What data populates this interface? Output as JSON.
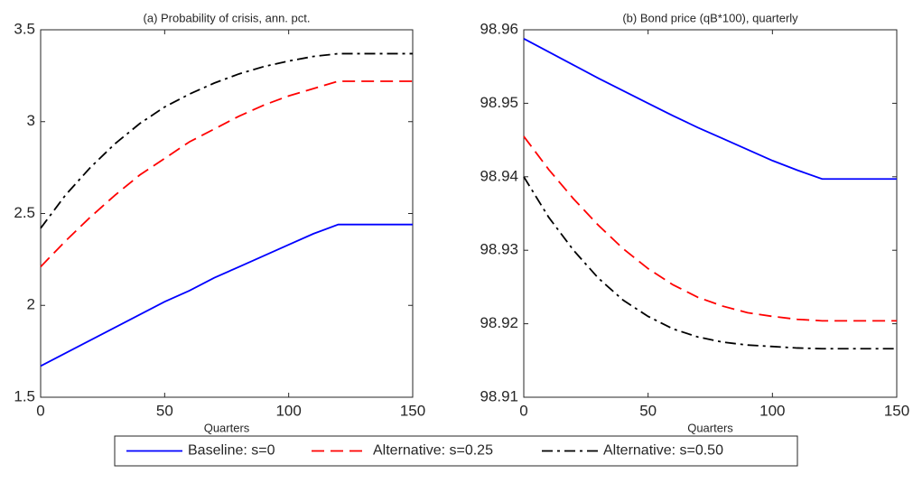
{
  "chart_data": [
    {
      "type": "line",
      "title": "(a) Probability of crisis, ann. pct.",
      "x_label": "Quarters",
      "x": [
        0,
        10,
        20,
        30,
        40,
        50,
        60,
        70,
        80,
        90,
        100,
        110,
        120,
        130,
        140,
        150
      ],
      "xlim": [
        0,
        150
      ],
      "xticks": [
        0,
        50,
        100,
        150
      ],
      "ylim": [
        1.5,
        3.5
      ],
      "yticks": [
        1.5,
        2,
        2.5,
        3,
        3.5
      ],
      "series": [
        {
          "name": "Baseline: s=0",
          "color": "#0000ff",
          "dash": "solid",
          "values": [
            1.67,
            1.74,
            1.81,
            1.88,
            1.95,
            2.02,
            2.08,
            2.15,
            2.21,
            2.27,
            2.33,
            2.39,
            2.44,
            2.44,
            2.44,
            2.44
          ]
        },
        {
          "name": "Alternative: s=0.25",
          "color": "#ff0000",
          "dash": "dashed",
          "values": [
            2.21,
            2.35,
            2.48,
            2.6,
            2.71,
            2.8,
            2.89,
            2.96,
            3.03,
            3.09,
            3.14,
            3.18,
            3.22,
            3.22,
            3.22,
            3.22
          ]
        },
        {
          "name": "Alternative: s=0.50",
          "color": "#000000",
          "dash": "dashdot",
          "values": [
            2.42,
            2.6,
            2.75,
            2.88,
            2.99,
            3.08,
            3.15,
            3.21,
            3.26,
            3.3,
            3.33,
            3.355,
            3.37,
            3.37,
            3.37,
            3.37
          ]
        }
      ]
    },
    {
      "type": "line",
      "title": "(b) Bond price (qB*100), quarterly",
      "x_label": "Quarters",
      "x": [
        0,
        10,
        20,
        30,
        40,
        50,
        60,
        70,
        80,
        90,
        100,
        110,
        120,
        130,
        140,
        150
      ],
      "xlim": [
        0,
        150
      ],
      "xticks": [
        0,
        50,
        100,
        150
      ],
      "ylim": [
        98.91,
        98.96
      ],
      "yticks": [
        98.91,
        98.92,
        98.93,
        98.94,
        98.95,
        98.96
      ],
      "series": [
        {
          "color": "#0000ff",
          "dash": "solid",
          "values": [
            98.9588,
            98.957,
            98.9552,
            98.9534,
            98.9517,
            98.95,
            98.9483,
            98.9467,
            98.9452,
            98.9437,
            98.9422,
            98.9409,
            98.9397,
            98.9397,
            98.9397,
            98.9397
          ]
        },
        {
          "color": "#ff0000",
          "dash": "dashed",
          "values": [
            98.9455,
            98.941,
            98.937,
            98.9334,
            98.9302,
            98.9275,
            98.9253,
            98.9236,
            98.9224,
            98.9215,
            98.921,
            98.9206,
            98.9204,
            98.9204,
            98.9204,
            98.9204
          ]
        },
        {
          "color": "#000000",
          "dash": "dashdot",
          "values": [
            98.94,
            98.9345,
            98.93,
            98.9262,
            98.9232,
            98.921,
            98.9193,
            98.9182,
            98.9175,
            98.9171,
            98.9169,
            98.9167,
            98.9166,
            98.9166,
            98.9166,
            98.9166
          ]
        }
      ]
    }
  ]
}
